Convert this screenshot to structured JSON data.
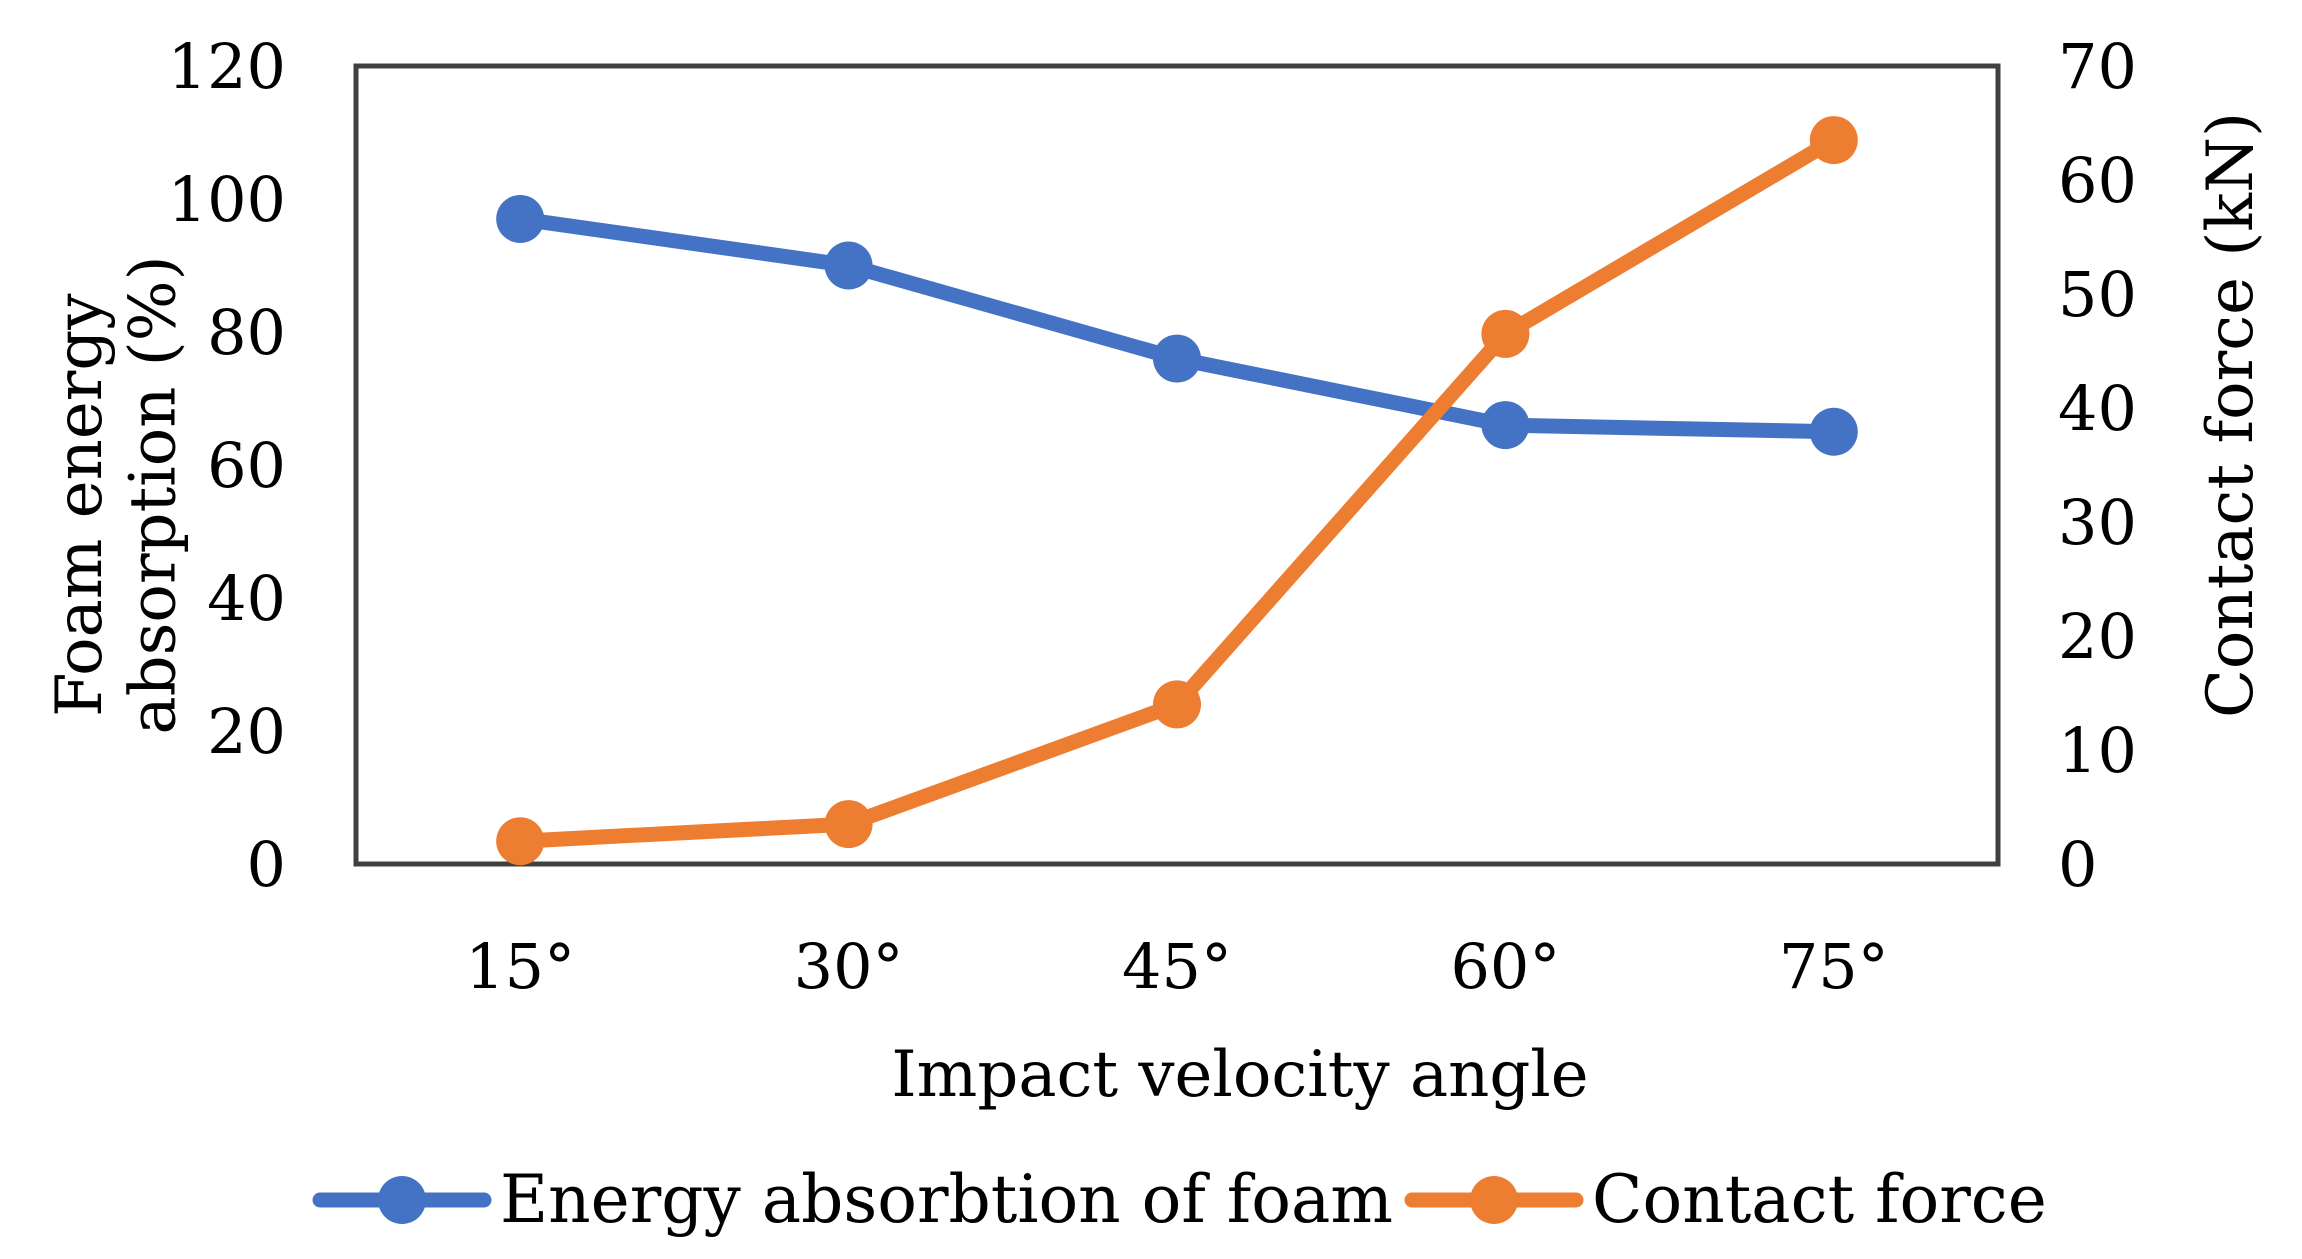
{
  "chart_data": {
    "type": "line",
    "title": "",
    "xlabel": "Impact velocity angle",
    "ylabel_left": "Foam energy absorption (%)",
    "ylabel_left_lines": [
      "Foam energy",
      "absorption (%)"
    ],
    "ylabel_right": "Contact force (kN)",
    "categories": [
      "15°",
      "30°",
      "45°",
      "60°",
      "75°"
    ],
    "ylim_left": [
      0,
      120
    ],
    "yticks_left": [
      0,
      20,
      40,
      60,
      80,
      100,
      120
    ],
    "ylim_right": [
      0,
      70
    ],
    "yticks_right": [
      0,
      10,
      20,
      30,
      40,
      50,
      60,
      70
    ],
    "grid": false,
    "legend_position": "bottom",
    "series": [
      {
        "name": "Energy absorbtion of foam",
        "axis": "left",
        "color": "#4472C4",
        "values": [
          97,
          90,
          76,
          66,
          65
        ]
      },
      {
        "name": "Contact force",
        "axis": "right",
        "color": "#ED7D31",
        "values": [
          2,
          3.5,
          14,
          46.5,
          63.5
        ]
      }
    ]
  }
}
